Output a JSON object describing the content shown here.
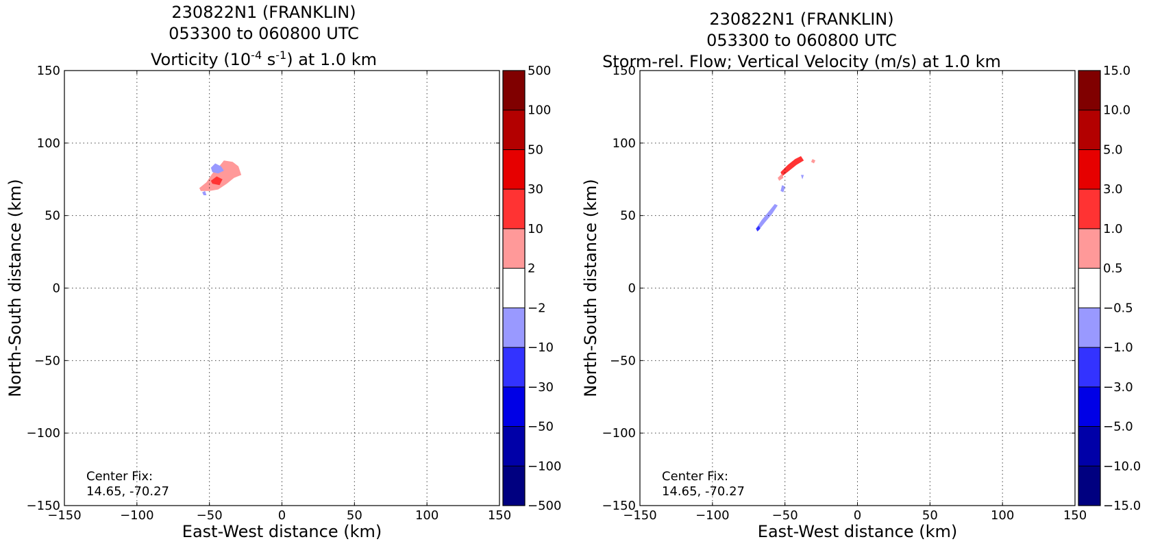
{
  "colors": {
    "vort_levels": [
      "#000080",
      "#0000a8",
      "#0000e6",
      "#3333ff",
      "#9999ff",
      "#ffffff",
      "#ff9999",
      "#ff3333",
      "#e60000",
      "#b30000",
      "#800000"
    ],
    "vel_levels": [
      "#000080",
      "#0000a8",
      "#0000e6",
      "#3333ff",
      "#9999ff",
      "#ffffff",
      "#ff9999",
      "#ff3333",
      "#e60000",
      "#b30000",
      "#800000"
    ]
  },
  "chart_data": [
    {
      "type": "heatmap",
      "title": {
        "line1": "230822N1 (FRANKLIN)",
        "line2": "053300 to 060800 UTC",
        "line3_pre": "Vorticity (10",
        "line3_sup1": "-4",
        "line3_mid": " s",
        "line3_sup2": "-1",
        "line3_post": ") at 1.0 km"
      },
      "xlabel": "East-West distance (km)",
      "ylabel": "North-South distance (km)",
      "xlim": [
        -150,
        150
      ],
      "ylim": [
        -150,
        150
      ],
      "xticks": [
        "−150",
        "−100",
        "−50",
        "0",
        "50",
        "100",
        "150"
      ],
      "yticks": [
        "−150",
        "−100",
        "−50",
        "0",
        "50",
        "100",
        "150"
      ],
      "grid": true,
      "annotation": {
        "line1": "Center Fix:",
        "line2": "14.65, -70.27"
      },
      "colorbar_labels": [
        "500",
        "100",
        "50",
        "30",
        "10",
        "2",
        "−2",
        "−10",
        "−30",
        "−50",
        "−100",
        "−500"
      ],
      "regions": [
        {
          "level": 6,
          "points": [
            [
              -57,
              69
            ],
            [
              -52,
              73
            ],
            [
              -48,
              79
            ],
            [
              -44,
              83
            ],
            [
              -40,
              88
            ],
            [
              -34,
              87
            ],
            [
              -30,
              84
            ],
            [
              -28,
              78
            ],
            [
              -33,
              76
            ],
            [
              -38,
              72
            ],
            [
              -44,
              68
            ],
            [
              -50,
              67
            ],
            [
              -56,
              67
            ]
          ]
        },
        {
          "level": 7,
          "points": [
            [
              -49,
              74
            ],
            [
              -45,
              77
            ],
            [
              -41,
              75
            ],
            [
              -43,
              71
            ],
            [
              -48,
              72
            ]
          ]
        },
        {
          "level": 4,
          "points": [
            [
              -49,
              83
            ],
            [
              -46,
              86
            ],
            [
              -42,
              84
            ],
            [
              -40,
              81
            ],
            [
              -44,
              79
            ],
            [
              -48,
              80
            ]
          ]
        },
        {
          "level": 4,
          "points": [
            [
              -55,
              66
            ],
            [
              -53,
              67
            ],
            [
              -52,
              64
            ],
            [
              -54,
              64
            ]
          ]
        }
      ]
    },
    {
      "type": "heatmap",
      "title": {
        "line1": "230822N1 (FRANKLIN)",
        "line2": "053300 to 060800 UTC",
        "line3": "Storm-rel. Flow; Vertical Velocity (m/s) at 1.0 km"
      },
      "xlabel": "East-West distance (km)",
      "ylabel": "North-South distance (km)",
      "xlim": [
        -150,
        150
      ],
      "ylim": [
        -150,
        150
      ],
      "xticks": [
        "−150",
        "−100",
        "−50",
        "0",
        "50",
        "100",
        "150"
      ],
      "yticks": [
        "−150",
        "−100",
        "−50",
        "0",
        "50",
        "100",
        "150"
      ],
      "grid": true,
      "annotation": {
        "line1": "Center Fix:",
        "line2": "14.65, -70.27"
      },
      "colorbar_labels": [
        "15.0",
        "10.0",
        "5.0",
        "3.0",
        "1.0",
        "0.5",
        "−0.5",
        "−1.0",
        "−3.0",
        "−5.0",
        "−10.0",
        "−15.0"
      ],
      "regions": [
        {
          "level": 7,
          "points": [
            [
              -53,
              80
            ],
            [
              -48,
              85
            ],
            [
              -43,
              89
            ],
            [
              -39,
              91
            ],
            [
              -37,
              88
            ],
            [
              -42,
              85
            ],
            [
              -47,
              81
            ],
            [
              -52,
              77
            ]
          ]
        },
        {
          "level": 6,
          "points": [
            [
              -55,
              76
            ],
            [
              -52,
              79
            ],
            [
              -51,
              76
            ],
            [
              -54,
              74
            ]
          ]
        },
        {
          "level": 6,
          "points": [
            [
              -31,
              89
            ],
            [
              -29,
              88
            ],
            [
              -30,
              86
            ],
            [
              -32,
              87
            ]
          ]
        },
        {
          "level": 4,
          "points": [
            [
              -70,
              41
            ],
            [
              -66,
              47
            ],
            [
              -61,
              53
            ],
            [
              -57,
              58
            ],
            [
              -55,
              57
            ],
            [
              -59,
              51
            ],
            [
              -64,
              45
            ],
            [
              -68,
              40
            ]
          ]
        },
        {
          "level": 4,
          "points": [
            [
              -52,
              71
            ],
            [
              -50,
              70
            ],
            [
              -51,
              66
            ],
            [
              -53,
              67
            ]
          ]
        },
        {
          "level": 4,
          "points": [
            [
              -39,
              78
            ],
            [
              -37,
              78
            ],
            [
              -38,
              75
            ]
          ]
        },
        {
          "level": 3,
          "points": [
            [
              -70,
              41
            ],
            [
              -68,
              43
            ],
            [
              -67,
              41
            ],
            [
              -69,
              39
            ]
          ]
        }
      ]
    }
  ]
}
